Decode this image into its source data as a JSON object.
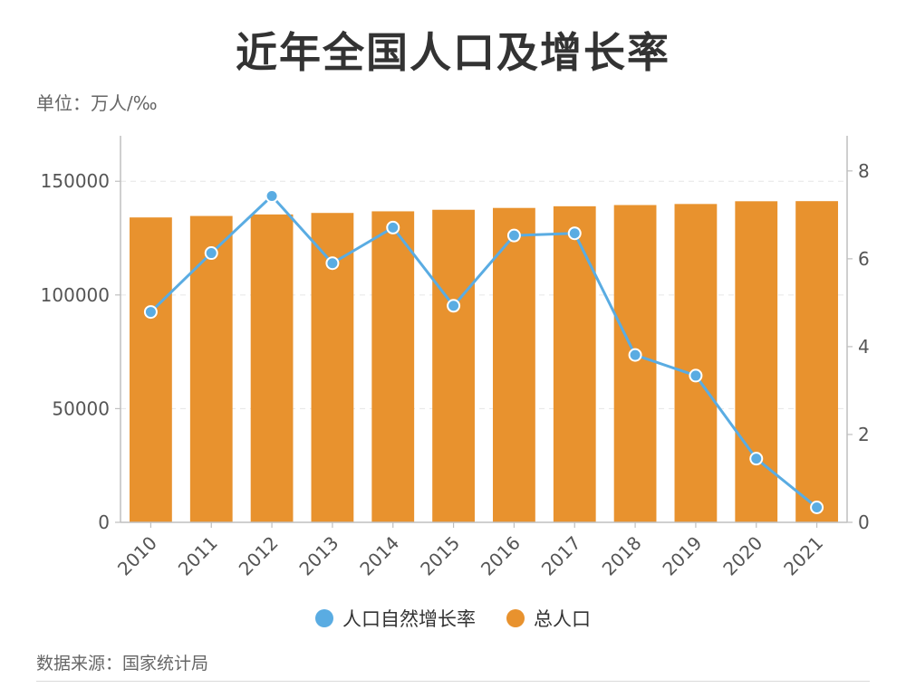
{
  "title": "近年全国人口及增长率",
  "unit_label": "单位：万人/‰",
  "source": "数据来源：国家统计局",
  "colors": {
    "bar": "#E8922E",
    "line": "#5AACE2",
    "axis": "#bfbfbf",
    "grid": "#e6e6e6"
  },
  "chart_data": {
    "type": "bar",
    "categories": [
      "2010",
      "2011",
      "2012",
      "2013",
      "2014",
      "2015",
      "2016",
      "2017",
      "2018",
      "2019",
      "2020",
      "2021"
    ],
    "series": [
      {
        "name": "总人口",
        "type": "bar",
        "axis": "left",
        "values": [
          134091,
          134735,
          135404,
          136072,
          136782,
          137462,
          138271,
          139008,
          139538,
          140005,
          141212,
          141260
        ]
      },
      {
        "name": "人口自然增长率",
        "type": "line",
        "axis": "right",
        "values": [
          4.79,
          6.13,
          7.43,
          5.9,
          6.71,
          4.93,
          6.53,
          6.58,
          3.81,
          3.34,
          1.45,
          0.34
        ]
      }
    ],
    "y_left": {
      "ticks": [
        "0",
        "50000",
        "100000",
        "150000"
      ],
      "range": [
        0,
        170000
      ]
    },
    "y_right": {
      "ticks": [
        "0",
        "2",
        "4",
        "6",
        "8"
      ],
      "range": [
        0,
        8.8
      ]
    },
    "grid": true,
    "legend_position": "bottom"
  },
  "legend": [
    {
      "label": "人口自然增长率",
      "color": "#5AACE2"
    },
    {
      "label": "总人口",
      "color": "#E8922E"
    }
  ]
}
